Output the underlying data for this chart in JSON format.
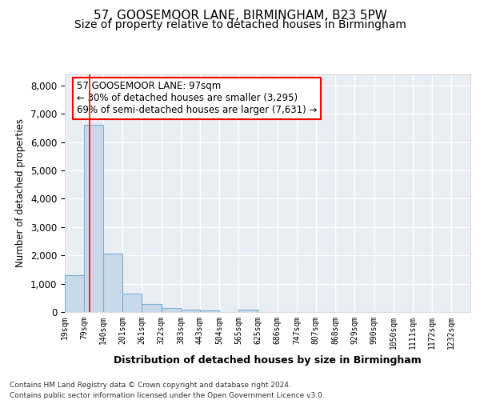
{
  "title1": "57, GOOSEMOOR LANE, BIRMINGHAM, B23 5PW",
  "title2": "Size of property relative to detached houses in Birmingham",
  "xlabel": "Distribution of detached houses by size in Birmingham",
  "ylabel": "Number of detached properties",
  "footnote1": "Contains HM Land Registry data © Crown copyright and database right 2024.",
  "footnote2": "Contains public sector information licensed under the Open Government Licence v3.0.",
  "annotation_line1": "57 GOOSEMOOR LANE: 97sqm",
  "annotation_line2": "← 30% of detached houses are smaller (3,295)",
  "annotation_line3": "69% of semi-detached houses are larger (7,631) →",
  "bar_left_edges": [
    19,
    79,
    140,
    201,
    261,
    322,
    383,
    443,
    504,
    565,
    625,
    686,
    747,
    807,
    868,
    929,
    990,
    1050,
    1111,
    1172
  ],
  "bar_widths": [
    60,
    61,
    61,
    60,
    61,
    61,
    60,
    61,
    61,
    60,
    61,
    61,
    60,
    61,
    61,
    61,
    60,
    61,
    61,
    60
  ],
  "bar_heights": [
    1300,
    6600,
    2050,
    650,
    290,
    140,
    90,
    60,
    10,
    75,
    0,
    0,
    0,
    0,
    0,
    0,
    0,
    0,
    0,
    0
  ],
  "bar_color": "#c9d9ea",
  "bar_edge_color": "#7bafd4",
  "tick_labels": [
    "19sqm",
    "79sqm",
    "140sqm",
    "201sqm",
    "261sqm",
    "322sqm",
    "383sqm",
    "443sqm",
    "504sqm",
    "565sqm",
    "625sqm",
    "686sqm",
    "747sqm",
    "807sqm",
    "868sqm",
    "929sqm",
    "990sqm",
    "1050sqm",
    "1111sqm",
    "1172sqm",
    "1232sqm"
  ],
  "red_line_x": 97,
  "ylim": [
    0,
    8400
  ],
  "yticks": [
    0,
    1000,
    2000,
    3000,
    4000,
    5000,
    6000,
    7000,
    8000
  ],
  "background_color": "#ffffff",
  "plot_bg_color": "#e8eef4",
  "grid_color": "#ffffff",
  "title1_fontsize": 11,
  "title2_fontsize": 10,
  "ann_fontsize": 8.5
}
